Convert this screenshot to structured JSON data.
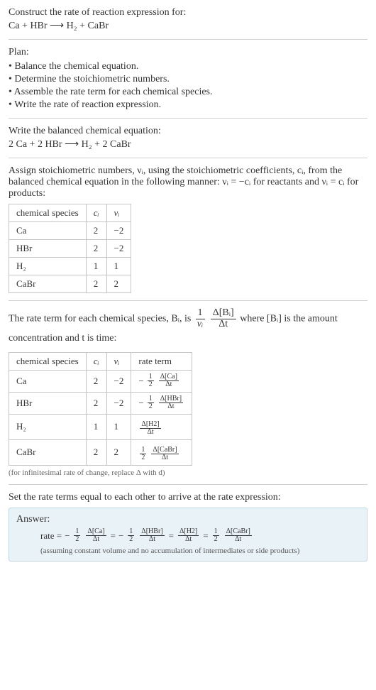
{
  "header": {
    "prompt": "Construct the rate of reaction expression for:",
    "equation": "Ca + HBr  ⟶  H₂ + CaBr"
  },
  "plan": {
    "title": "Plan:",
    "items": [
      "• Balance the chemical equation.",
      "• Determine the stoichiometric numbers.",
      "• Assemble the rate term for each chemical species.",
      "• Write the rate of reaction expression."
    ]
  },
  "balanced": {
    "title": "Write the balanced chemical equation:",
    "equation": "2 Ca + 2 HBr  ⟶  H₂ + 2 CaBr"
  },
  "stoich": {
    "intro_a": "Assign stoichiometric numbers, νᵢ, using the stoichiometric coefficients, cᵢ, from the balanced chemical equation in the following manner: νᵢ = −cᵢ for reactants and νᵢ = cᵢ for products:",
    "headers": [
      "chemical species",
      "cᵢ",
      "νᵢ"
    ],
    "rows": [
      {
        "species": "Ca",
        "c": "2",
        "v": "−2"
      },
      {
        "species": "HBr",
        "c": "2",
        "v": "−2"
      },
      {
        "species": "H₂",
        "c": "1",
        "v": "1"
      },
      {
        "species": "CaBr",
        "c": "2",
        "v": "2"
      }
    ]
  },
  "rateterm": {
    "intro_pre": "The rate term for each chemical species, Bᵢ, is ",
    "intro_post": " where [Bᵢ] is the amount concentration and t is time:",
    "generic_lead_num": "1",
    "generic_lead_den": "νᵢ",
    "generic_num": "Δ[Bᵢ]",
    "generic_den": "Δt",
    "headers": [
      "chemical species",
      "cᵢ",
      "νᵢ",
      "rate term"
    ],
    "rows": [
      {
        "species": "Ca",
        "c": "2",
        "v": "−2",
        "sign": "−",
        "coef_num": "1",
        "coef_den": "2",
        "d_num": "Δ[Ca]",
        "d_den": "Δt"
      },
      {
        "species": "HBr",
        "c": "2",
        "v": "−2",
        "sign": "−",
        "coef_num": "1",
        "coef_den": "2",
        "d_num": "Δ[HBr]",
        "d_den": "Δt"
      },
      {
        "species": "H₂",
        "c": "1",
        "v": "1",
        "sign": "",
        "coef_num": "",
        "coef_den": "",
        "d_num": "Δ[H2]",
        "d_den": "Δt"
      },
      {
        "species": "CaBr",
        "c": "2",
        "v": "2",
        "sign": "",
        "coef_num": "1",
        "coef_den": "2",
        "d_num": "Δ[CaBr]",
        "d_den": "Δt"
      }
    ],
    "footnote": "(for infinitesimal rate of change, replace Δ with d)"
  },
  "final": {
    "title": "Set the rate terms equal to each other to arrive at the rate expression:",
    "answer_label": "Answer:",
    "rate_label": "rate =",
    "terms": [
      {
        "sign": "−",
        "coef_num": "1",
        "coef_den": "2",
        "d_num": "Δ[Ca]",
        "d_den": "Δt",
        "sep": "="
      },
      {
        "sign": "−",
        "coef_num": "1",
        "coef_den": "2",
        "d_num": "Δ[HBr]",
        "d_den": "Δt",
        "sep": "="
      },
      {
        "sign": "",
        "coef_num": "",
        "coef_den": "",
        "d_num": "Δ[H2]",
        "d_den": "Δt",
        "sep": "="
      },
      {
        "sign": "",
        "coef_num": "1",
        "coef_den": "2",
        "d_num": "Δ[CaBr]",
        "d_den": "Δt",
        "sep": ""
      }
    ],
    "assumption": "(assuming constant volume and no accumulation of intermediates or side products)"
  }
}
